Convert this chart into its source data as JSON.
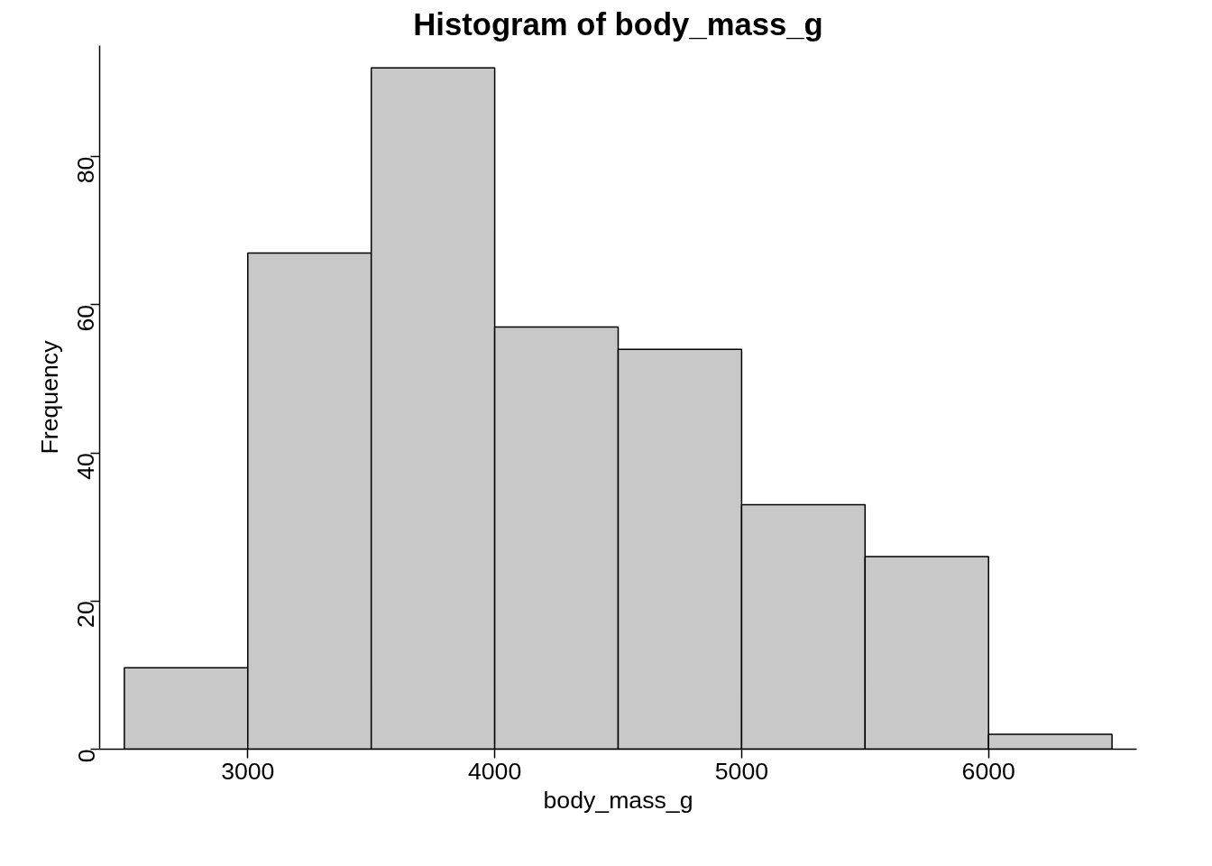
{
  "chart_data": {
    "type": "histogram",
    "title": "Histogram of body_mass_g",
    "xlabel": "body_mass_g",
    "ylabel": "Frequency",
    "bins": [
      2500,
      3000,
      3500,
      4000,
      4500,
      5000,
      5500,
      6000,
      6500
    ],
    "values": [
      11,
      67,
      92,
      57,
      54,
      33,
      26,
      2
    ],
    "color": "#c8c8c8",
    "xlim": [
      2400,
      6600
    ],
    "ylim": [
      0,
      95
    ],
    "xticks": [
      3000,
      4000,
      5000,
      6000
    ],
    "yticks": [
      0,
      20,
      40,
      60,
      80
    ],
    "grid": false
  }
}
